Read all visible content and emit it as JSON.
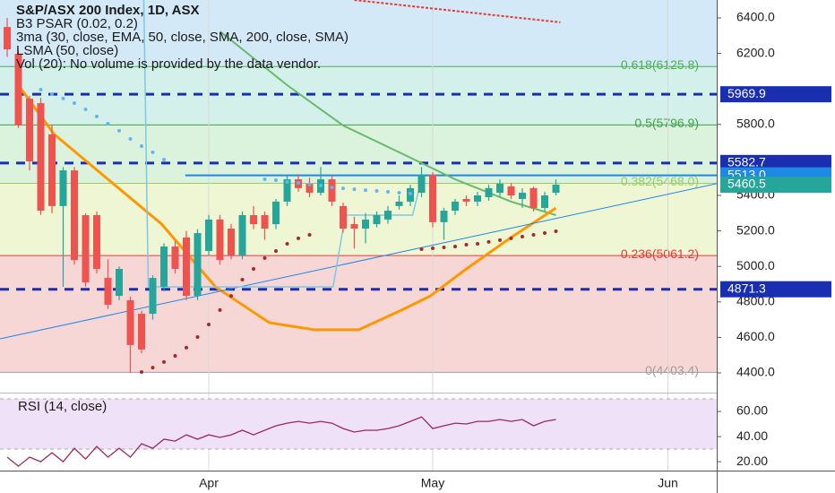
{
  "chart_data": {
    "type": "candlestick",
    "title": "S&P/ASX 200 Index, 1D, ASX",
    "legend": [
      "B3 PSAR (0.02, 0.2)",
      "3ma (30, close, EMA, 50, close, SMA, 200, close, SMA)",
      "LSMA (50, close)",
      "Vol (20): No volume is provided by the data vendor."
    ],
    "xlim": [
      -0.64,
      63.36
    ],
    "xticks": [
      {
        "value": 18,
        "label": "Apr"
      },
      {
        "value": 38,
        "label": "May"
      },
      {
        "value": 59,
        "label": "Jun"
      }
    ],
    "ylim": [
      4294,
      6501
    ],
    "yticks": [
      {
        "value": 6400,
        "label": "6400.0"
      },
      {
        "value": 6200,
        "label": "6200.0"
      },
      {
        "value": 5800,
        "label": "5800.0"
      },
      {
        "value": 5400,
        "label": "5400.0"
      },
      {
        "value": 5200,
        "label": "5200.0"
      },
      {
        "value": 5000,
        "label": "5000.0"
      },
      {
        "value": 4800,
        "label": "4800.0"
      },
      {
        "value": 4600,
        "label": "4600.0"
      },
      {
        "value": 4400,
        "label": "4400.0"
      }
    ],
    "up_color": "#26a69a",
    "down_color": "#ef5350",
    "open": [
      6349,
      6198,
      5945,
      5920,
      5744,
      5340,
      5541,
      5289,
      5289,
      4935,
      4834,
      4809,
      4733,
      4733,
      4885,
      5112,
      5163,
      4834,
      5087,
      5264,
      5213,
      5062,
      5289,
      5289,
      5238,
      5365,
      5491,
      5466,
      5415,
      5491,
      5340,
      5238,
      5213,
      5238,
      5264,
      5340,
      5365,
      5415,
      5516,
      5249,
      5314,
      5380,
      5365,
      5390,
      5415,
      5451,
      5380,
      5441,
      5329,
      5415
    ],
    "high": [
      6400,
      6220,
      5960,
      5950,
      5800,
      5560,
      5560,
      5300,
      5310,
      5040,
      5000,
      4830,
      4750,
      4950,
      5130,
      5140,
      5200,
      5210,
      5290,
      5290,
      5240,
      5310,
      5340,
      5310,
      5380,
      5510,
      5520,
      5500,
      5560,
      5510,
      5360,
      5280,
      5300,
      5310,
      5340,
      5400,
      5460,
      5560,
      5530,
      5330,
      5380,
      5400,
      5420,
      5460,
      5490,
      5470,
      5440,
      5450,
      5420,
      5490
    ],
    "low": [
      6180,
      5780,
      5541,
      5290,
      5300,
      4885,
      5010,
      4885,
      4960,
      4760,
      4810,
      4400,
      4510,
      4700,
      4860,
      4960,
      4810,
      4810,
      5060,
      5010,
      5040,
      5040,
      5210,
      5150,
      5210,
      5340,
      5420,
      5390,
      5400,
      5340,
      5190,
      5100,
      5130,
      5220,
      5240,
      5320,
      5340,
      5390,
      5220,
      5150,
      5290,
      5340,
      5340,
      5370,
      5390,
      5380,
      5330,
      5310,
      5310,
      5400
    ],
    "close": [
      6223,
      5794,
      5592,
      5314,
      5340,
      5541,
      5036,
      4910,
      4986,
      4784,
      4986,
      4557,
      4532,
      4935,
      5112,
      4986,
      4834,
      5188,
      5264,
      5036,
      5062,
      5289,
      5238,
      5213,
      5365,
      5491,
      5441,
      5415,
      5491,
      5365,
      5213,
      5213,
      5264,
      5289,
      5314,
      5365,
      5441,
      5516,
      5249,
      5314,
      5365,
      5365,
      5400,
      5441,
      5466,
      5400,
      5415,
      5329,
      5400,
      5460.5
    ],
    "fib_levels": [
      {
        "value": 6125.8,
        "label": "0.618(6125.8)",
        "color": "#4caf50",
        "fill": "#d3e9f7"
      },
      {
        "value": 5796.9,
        "label": "0.5(5796.9)",
        "color": "#43a047",
        "fill": "#d4f0ea"
      },
      {
        "value": 5468.0,
        "label": "0.382(5468.0)",
        "color": "#9ccc65",
        "fill": "#dbf2dc"
      },
      {
        "value": 5061.2,
        "label": "0.236(5061.2)",
        "color": "#e53935",
        "fill": "#eef6d4"
      },
      {
        "value": 4403.4,
        "label": "0(4403.4)",
        "color": "#9e9e9e",
        "fill": "#f7d6d6"
      }
    ],
    "dashed_levels": [
      5969.9,
      5582.7,
      4871.3
    ],
    "dashed_color": "#1a2fb0",
    "ray_level": {
      "value": 5513,
      "label": "5513.0",
      "x_start": 15.9,
      "color": "#1e88e5"
    },
    "lines": [
      {
        "color": "#66bb6a",
        "width": 2,
        "x": [
          19,
          20,
          25,
          30,
          35,
          40,
          45,
          49
        ],
        "values": [
          6324,
          6274,
          6021,
          5794,
          5643,
          5491,
          5365,
          5289
        ]
      },
      {
        "color": "#ff9800",
        "width": 3,
        "x": [
          1,
          4.2,
          9,
          13.8,
          18.6,
          23.4,
          27.4,
          31.4,
          35.4,
          37.8,
          41,
          45,
          49
        ],
        "values": [
          6021,
          5744,
          5491,
          5238,
          4885,
          4683,
          4643,
          4643,
          4759,
          4834,
          4986,
          5163,
          5329
        ]
      },
      {
        "color": "#1e88e5",
        "width": 1,
        "x": [
          -0.64,
          63.36
        ],
        "values": [
          4592,
          5466
        ]
      },
      {
        "color": "#7ec8e3",
        "width": 1.5,
        "x": [
          12.2,
          12.6,
          29.1,
          30.2,
          36.2,
          37
        ],
        "values": [
          6501,
          4885,
          4885,
          5289,
          5289,
          5491
        ]
      },
      {
        "color": "#e53935",
        "width": 2,
        "dash": true,
        "x": [
          31,
          49.4
        ],
        "values": [
          6501,
          6375
        ]
      }
    ],
    "dots": [
      {
        "color": "#64b5f6",
        "x": [
          3,
          4,
          5,
          6,
          7,
          8,
          9,
          10,
          11,
          12,
          13,
          14,
          23,
          24,
          25,
          26,
          27,
          28,
          29,
          30,
          31,
          32,
          33,
          34,
          35,
          36
        ],
        "values": [
          5996,
          5971,
          5946,
          5920,
          5885,
          5845,
          5804,
          5764,
          5718,
          5678,
          5643,
          5602,
          5491,
          5486,
          5476,
          5471,
          5461,
          5456,
          5445,
          5440,
          5435,
          5430,
          5425,
          5420,
          5415,
          5410
        ]
      },
      {
        "color": "#a52a2a",
        "x": [
          12,
          13,
          14,
          15,
          16,
          17,
          18,
          19,
          20,
          21,
          22,
          23,
          24,
          25,
          26,
          27,
          37,
          38,
          39,
          40,
          41,
          42,
          43,
          44,
          45,
          46,
          47,
          48,
          49
        ],
        "values": [
          4405,
          4430,
          4461,
          4496,
          4542,
          4602,
          4673,
          4754,
          4834,
          4925,
          4986,
          5047,
          5087,
          5127,
          5158,
          5178,
          5097,
          5102,
          5107,
          5112,
          5122,
          5127,
          5138,
          5148,
          5158,
          5168,
          5178,
          5188,
          5198
        ]
      }
    ],
    "rsi": {
      "title": "RSI (14, close)",
      "color": "#9c2762",
      "band": [
        30,
        70
      ],
      "band_color": "#efe2f8",
      "ylim": [
        12.9,
        73.6
      ],
      "yticks": [
        {
          "value": 60,
          "label": "60.00"
        },
        {
          "value": 40,
          "label": "40.00"
        },
        {
          "value": 20,
          "label": "20.00"
        }
      ],
      "values": [
        23.6,
        16.4,
        23.6,
        20,
        27.1,
        20,
        30.7,
        22.1,
        32.1,
        23.6,
        30.7,
        23.6,
        34.3,
        30.7,
        37.9,
        36.4,
        41.4,
        37.9,
        41.4,
        39.3,
        41.4,
        45,
        41.4,
        45,
        48.6,
        50.7,
        52.1,
        50.7,
        52.1,
        50.7,
        46.4,
        43.6,
        45,
        45,
        46.4,
        48.6,
        52.1,
        55.7,
        46.4,
        48.6,
        50.7,
        50,
        52.1,
        52.1,
        53.6,
        52.1,
        53.6,
        48.6,
        52.1,
        53.6
      ]
    }
  }
}
